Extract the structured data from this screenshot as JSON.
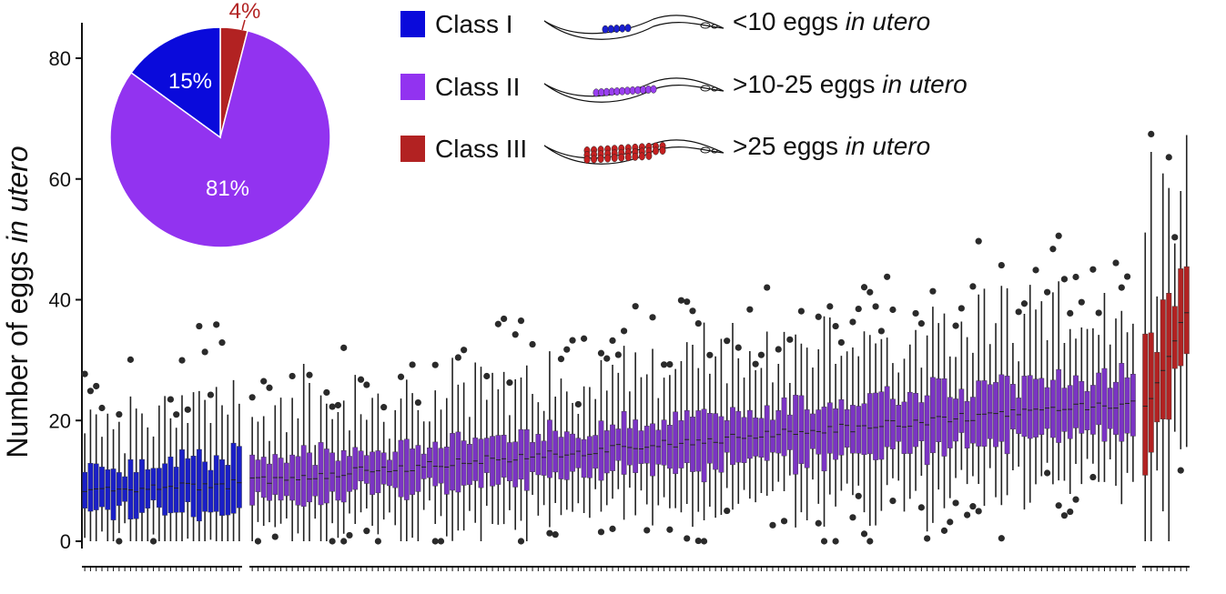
{
  "chart_data": [
    {
      "type": "box",
      "ylabel_prefix": "Number of eggs ",
      "ylabel_italic": "in utero",
      "ylim": [
        0,
        85
      ],
      "yticks": [
        0,
        20,
        40,
        60,
        80
      ],
      "grid": false,
      "groups": [
        {
          "name": "Class I",
          "color": "#1a1fc7",
          "n_boxes": 28,
          "median_start": 8,
          "median_end": 9.5
        },
        {
          "name": "Class II",
          "color": "#7b34c4",
          "n_boxes": 155,
          "median_start": 10,
          "median_end": 23
        },
        {
          "name": "Class III",
          "color": "#b22222",
          "n_boxes": 8,
          "median_start": 22,
          "median_end": 38
        }
      ]
    },
    {
      "type": "pie",
      "slices": [
        {
          "label": "Class I",
          "value": 15,
          "text": "15%",
          "color": "#0a0adb"
        },
        {
          "label": "Class II",
          "value": 81,
          "text": "81%",
          "color": "#9233f0"
        },
        {
          "label": "Class III",
          "value": 4,
          "text": "4%",
          "color": "#b22222"
        }
      ]
    }
  ],
  "legend": {
    "items": [
      {
        "class_label": "Class I",
        "swatch_color": "#0a0adb",
        "desc_prefix": "<10 eggs ",
        "desc_italic": "in utero",
        "egg_color": "#1a1fd0"
      },
      {
        "class_label": "Class II",
        "swatch_color": "#9233f0",
        "desc_prefix": ">10-25 eggs ",
        "desc_italic": "in utero",
        "egg_color": "#9a3ff0"
      },
      {
        "class_label": "Class III",
        "swatch_color": "#b22222",
        "desc_prefix": ">25 eggs ",
        "desc_italic": "in utero",
        "egg_color": "#c42020"
      }
    ]
  }
}
